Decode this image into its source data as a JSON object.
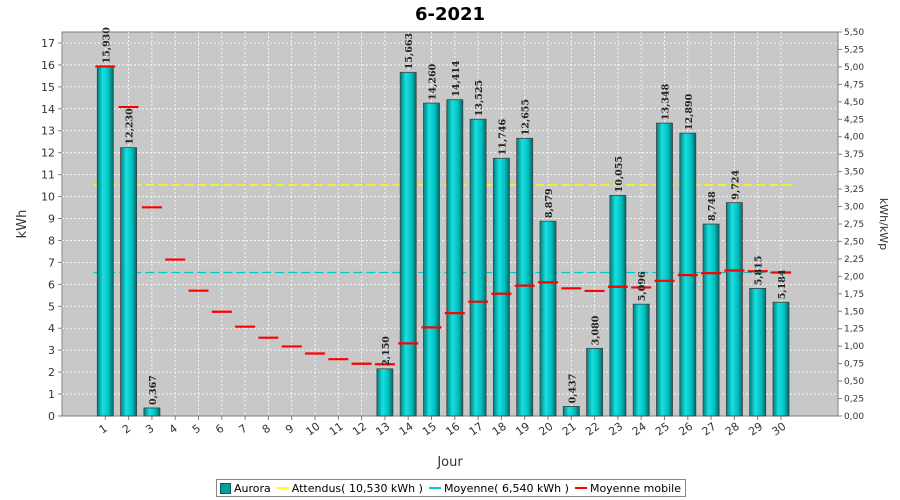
{
  "chart_data": {
    "type": "bar",
    "title": "6-2021",
    "xlabel": "Jour",
    "ylabel": "kWh",
    "y2label": "kWh/kWp",
    "ylim": [
      0,
      17.5
    ],
    "y2lim": [
      0,
      5.5
    ],
    "yticks": [
      "0",
      "1",
      "2",
      "3",
      "4",
      "5",
      "6",
      "7",
      "8",
      "9",
      "10",
      "11",
      "12",
      "13",
      "14",
      "15",
      "16",
      "17"
    ],
    "y2ticks": [
      "0,00",
      "0,25",
      "0,50",
      "0,75",
      "1,00",
      "1,25",
      "1,50",
      "1,75",
      "2,00",
      "2,25",
      "2,50",
      "2,75",
      "3,00",
      "3,25",
      "3,50",
      "3,75",
      "4,00",
      "4,25",
      "4,50",
      "4,75",
      "5,00",
      "5,25",
      "5,50"
    ],
    "categories": [
      "1",
      "2",
      "3",
      "4",
      "5",
      "6",
      "7",
      "8",
      "9",
      "10",
      "11",
      "12",
      "13",
      "14",
      "15",
      "16",
      "17",
      "18",
      "19",
      "20",
      "21",
      "22",
      "23",
      "24",
      "25",
      "26",
      "27",
      "28",
      "29",
      "30"
    ],
    "series": [
      {
        "name": "Aurora",
        "values": [
          15.93,
          12.23,
          0.367,
          0,
          0,
          0,
          0,
          0,
          0,
          0,
          0,
          0,
          2.15,
          15.663,
          14.26,
          14.414,
          13.525,
          11.746,
          12.655,
          8.879,
          0.437,
          3.08,
          10.055,
          5.096,
          13.348,
          12.89,
          8.748,
          9.724,
          5.815,
          5.184
        ],
        "labels": [
          "15,930",
          "12,230",
          "0,367",
          "",
          "",
          "",
          "",
          "",
          "",
          "",
          "",
          "",
          "2,150",
          "15,663",
          "14,260",
          "14,414",
          "13,525",
          "11,746",
          "12,655",
          "8,879",
          "0,437",
          "3,080",
          "10,055",
          "5,096",
          "13,348",
          "12,890",
          "8,748",
          "9,724",
          "5,815",
          "5,184"
        ]
      },
      {
        "name": "Attendus( 10,530 kWh )",
        "value": 10.53
      },
      {
        "name": "Moyenne( 6,540 kWh )",
        "value": 6.54
      },
      {
        "name": "Moyenne mobile",
        "values": [
          15.93,
          14.08,
          9.51,
          7.13,
          5.71,
          4.75,
          4.07,
          3.57,
          3.17,
          2.85,
          2.59,
          2.38,
          2.36,
          3.31,
          4.04,
          4.69,
          5.21,
          5.57,
          5.94,
          6.09,
          5.82,
          5.7,
          5.89,
          5.86,
          6.16,
          6.42,
          6.51,
          6.63,
          6.6,
          6.54
        ]
      }
    ],
    "colors": {
      "bar": "#00c8c8",
      "attendus": "#ffff00",
      "moyenne": "#00c8c8",
      "moyenne_mobile": "#ff0000",
      "plot_bg": "#c8c8c8"
    },
    "grid": true,
    "legend_position": "bottom"
  }
}
